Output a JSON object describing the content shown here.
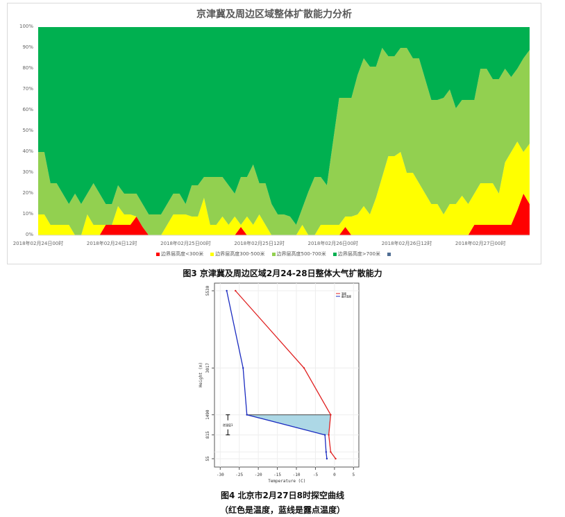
{
  "chart_data": [
    {
      "type": "area",
      "stacked": true,
      "percent": true,
      "title": "京津冀及周边区域整体扩散能力分析",
      "ylim": [
        0,
        100
      ],
      "y_tick_labels": [
        "0%",
        "10%",
        "20%",
        "30%",
        "40%",
        "50%",
        "60%",
        "70%",
        "80%",
        "90%",
        "100%"
      ],
      "x_tick_labels": [
        "2018年02月24日00时",
        "2018年02月24日12时",
        "2018年02月25日00时",
        "2018年02月25日12时",
        "2018年02月26日00时",
        "2018年02月26日12时",
        "2018年02月27日00时"
      ],
      "x_start": "2018年02月24日00时",
      "x_end": "2018年02月27日08时",
      "x_step": "1小时",
      "legend_position": "bottom",
      "grid": false,
      "series": [
        {
          "name": "边界层高度<300米",
          "color": "#ff0000",
          "values": [
            0,
            0,
            0,
            0,
            0,
            0,
            0,
            0,
            0,
            0,
            0,
            5,
            5,
            5,
            5,
            5,
            9,
            4,
            0,
            0,
            0,
            0,
            0,
            0,
            0,
            0,
            0,
            0,
            0,
            0,
            0,
            0,
            0,
            4,
            0,
            0,
            0,
            0,
            0,
            0,
            0,
            0,
            0,
            0,
            0,
            0,
            0,
            0,
            0,
            0,
            4,
            0,
            0,
            0,
            0,
            0,
            0,
            0,
            0,
            0,
            0,
            0,
            0,
            0,
            0,
            0,
            0,
            0,
            0,
            0,
            0,
            5,
            5,
            5,
            5,
            5,
            5,
            5,
            12,
            20,
            15
          ]
        },
        {
          "name": "边界层高度300-500米",
          "color": "#ffff00",
          "values": [
            10,
            10,
            5,
            5,
            5,
            5,
            0,
            0,
            10,
            5,
            5,
            0,
            0,
            9,
            5,
            5,
            0,
            0,
            0,
            0,
            0,
            5,
            10,
            10,
            10,
            9,
            9,
            18,
            5,
            5,
            9,
            5,
            9,
            1,
            9,
            5,
            10,
            5,
            0,
            0,
            0,
            0,
            0,
            5,
            0,
            0,
            5,
            5,
            5,
            5,
            5,
            9,
            10,
            14,
            10,
            18,
            28,
            38,
            38,
            40,
            30,
            30,
            25,
            20,
            15,
            15,
            10,
            15,
            15,
            19,
            15,
            15,
            20,
            20,
            20,
            15,
            30,
            35,
            33,
            20,
            29
          ]
        },
        {
          "name": "边界层高度500-700米",
          "color": "#92d050",
          "values": [
            30,
            30,
            20,
            20,
            15,
            10,
            20,
            15,
            10,
            20,
            15,
            10,
            10,
            10,
            10,
            10,
            11,
            11,
            10,
            10,
            10,
            10,
            10,
            10,
            5,
            15,
            15,
            10,
            23,
            23,
            19,
            19,
            11,
            23,
            19,
            29,
            15,
            20,
            15,
            10,
            10,
            9,
            5,
            8,
            21,
            28,
            23,
            19,
            40,
            61,
            57,
            57,
            67,
            71,
            71,
            63,
            62,
            48,
            48,
            50,
            60,
            55,
            60,
            55,
            50,
            50,
            56,
            55,
            46,
            46,
            50,
            45,
            55,
            55,
            50,
            55,
            45,
            36,
            35,
            45,
            45
          ]
        },
        {
          "name": "边界层高度>700米",
          "color": "#00b050",
          "values": [
            60,
            60,
            75,
            75,
            80,
            85,
            80,
            85,
            80,
            75,
            80,
            85,
            85,
            76,
            80,
            80,
            80,
            85,
            90,
            90,
            90,
            85,
            80,
            80,
            85,
            76,
            76,
            72,
            72,
            72,
            72,
            76,
            80,
            72,
            72,
            66,
            75,
            75,
            85,
            90,
            90,
            91,
            95,
            87,
            79,
            72,
            72,
            76,
            55,
            34,
            34,
            34,
            23,
            15,
            19,
            19,
            10,
            14,
            14,
            10,
            10,
            15,
            15,
            25,
            35,
            35,
            34,
            30,
            39,
            35,
            35,
            35,
            20,
            20,
            25,
            25,
            20,
            24,
            20,
            15,
            11
          ]
        },
        {
          "name": "",
          "color": "#4f6d93",
          "values": []
        }
      ]
    },
    {
      "type": "line",
      "xlabel": "Temperature (C)",
      "ylabel": "Height (m)",
      "xlim": [
        -32,
        7
      ],
      "x_ticks": [
        -30,
        -25,
        -20,
        -15,
        -10,
        -5,
        0,
        5
      ],
      "y_ticks": [
        55,
        815,
        1490,
        3017,
        5530
      ],
      "legend_position": "top-right",
      "grid": true,
      "series": [
        {
          "name": "温度",
          "color": "#e02020",
          "points": [
            [
              0.3,
              55
            ],
            [
              -1,
              270
            ],
            [
              -1.5,
              815
            ],
            [
              -1,
              1490
            ],
            [
              -8,
              3017
            ],
            [
              -26,
              5530
            ]
          ]
        },
        {
          "name": "露点温度",
          "color": "#1a2bc0",
          "points": [
            [
              -2,
              55
            ],
            [
              -2.2,
              270
            ],
            [
              -2.5,
              815
            ],
            [
              -23,
              1490
            ],
            [
              -24,
              3017
            ],
            [
              -28.3,
              5530
            ]
          ]
        }
      ],
      "shaded_region": {
        "label": "逆温层1",
        "color": "#add8e6",
        "from_height": 815,
        "to_height": 1490
      }
    }
  ],
  "captions": {
    "fig3": "图3 京津冀及周边区域2月24-28日整体大气扩散能力",
    "fig4": "图4 北京市2月27日8时探空曲线",
    "fig4_note": "（红色是温度，蓝线是露点温度）"
  }
}
